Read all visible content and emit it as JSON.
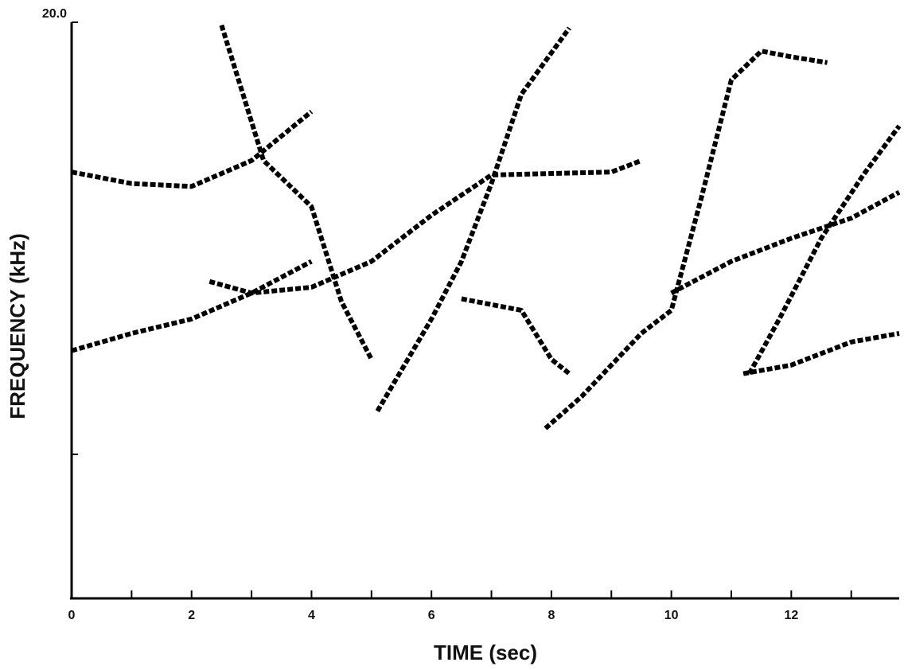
{
  "chart_data": {
    "type": "spectrogram",
    "xlabel": "TIME (sec)",
    "ylabel": "FREQUENCY (kHz)",
    "xlim": [
      0,
      13.8
    ],
    "ylim": [
      0,
      20
    ],
    "xticks": [
      0,
      2,
      4,
      6,
      8,
      10,
      12
    ],
    "xminorticks": [
      1,
      3,
      5,
      7,
      9,
      11,
      13
    ],
    "yticks": [
      {
        "value": 20,
        "label": "20.0"
      }
    ],
    "yminorticks": [
      5
    ],
    "series": [
      {
        "color": "#000000",
        "x": [
          5.1,
          6,
          6.5,
          7,
          7.5,
          8.3
        ],
        "values": [
          6.5,
          9.7,
          11.7,
          14.4,
          17.5,
          19.8
        ]
      },
      {
        "color": "#000000",
        "x": [
          7.9,
          8.5,
          9.5,
          10,
          10.5,
          11,
          11.5,
          12,
          12.6
        ],
        "values": [
          5.9,
          7.0,
          9.2,
          10.0,
          13.9,
          18.0,
          19.0,
          18.8,
          18.6
        ]
      },
      {
        "color": "#000000",
        "x": [
          0,
          1,
          2,
          3,
          4
        ],
        "values": [
          14.8,
          14.4,
          14.3,
          15.2,
          16.9
        ]
      },
      {
        "color": "#000000",
        "x": [
          2.3,
          3,
          4,
          5,
          6,
          7,
          9,
          9.5
        ],
        "values": [
          11.0,
          10.6,
          10.8,
          11.7,
          13.3,
          14.7,
          14.8,
          15.2
        ]
      },
      {
        "color": "#000000",
        "x": [
          6.5,
          7.5,
          8,
          8.3
        ],
        "values": [
          10.4,
          10.0,
          8.3,
          7.8
        ]
      },
      {
        "color": "#000000",
        "x": [
          10,
          11,
          12,
          13,
          13.8
        ],
        "values": [
          10.6,
          11.7,
          12.5,
          13.2,
          14.1
        ]
      },
      {
        "color": "#000000",
        "x": [
          11.2,
          12,
          13,
          13.8
        ],
        "values": [
          7.8,
          8.1,
          8.9,
          9.2
        ]
      },
      {
        "color": "#000000",
        "x": [
          0,
          1,
          2,
          3,
          4
        ],
        "values": [
          8.6,
          9.2,
          9.7,
          10.6,
          11.7
        ]
      },
      {
        "color": "#000000",
        "x": [
          11.3,
          11.8,
          12.5,
          13.2,
          13.8
        ],
        "values": [
          7.8,
          9.7,
          12.5,
          14.7,
          16.4
        ]
      },
      {
        "color": "#000000",
        "x": [
          2.5,
          3.2,
          4,
          4.5,
          5
        ],
        "values": [
          19.9,
          15.2,
          13.6,
          10.3,
          8.3
        ]
      }
    ]
  }
}
